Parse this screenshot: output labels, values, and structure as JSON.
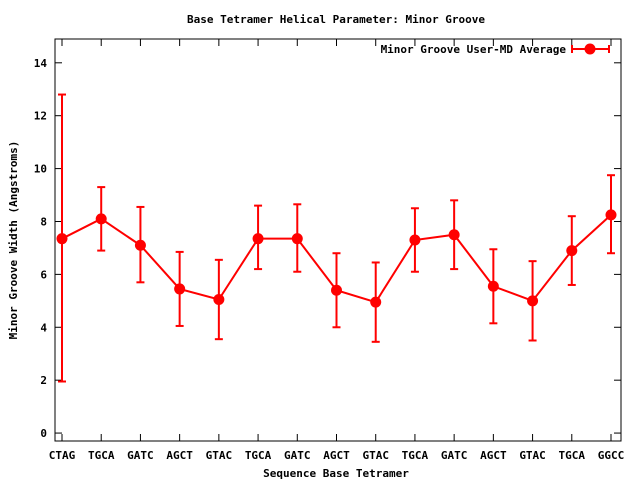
{
  "chart_data": {
    "type": "line",
    "title": "Base Tetramer Helical Parameter: Minor Groove",
    "xlabel": "Sequence Base Tetramer",
    "ylabel": "Minor Groove Width (Angstroms)",
    "ylim": [
      -0.3,
      14.9
    ],
    "yticks": [
      0,
      2,
      4,
      6,
      8,
      10,
      12,
      14
    ],
    "categories": [
      "CTAG",
      "TGCA",
      "GATC",
      "AGCT",
      "GTAC",
      "TGCA",
      "GATC",
      "AGCT",
      "GTAC",
      "TGCA",
      "GATC",
      "AGCT",
      "GTAC",
      "TGCA",
      "GGCC"
    ],
    "series": [
      {
        "name": "Minor Groove User-MD Average",
        "color": "#ff0000",
        "values": [
          7.35,
          8.1,
          7.1,
          5.45,
          5.05,
          7.35,
          7.35,
          5.4,
          4.95,
          7.3,
          7.5,
          5.55,
          5.0,
          6.9,
          8.25
        ],
        "error_low": [
          1.95,
          6.9,
          5.7,
          4.05,
          3.55,
          6.2,
          6.1,
          4.0,
          3.45,
          6.1,
          6.2,
          4.15,
          3.5,
          5.6,
          6.8
        ],
        "error_high": [
          12.8,
          9.3,
          8.55,
          6.85,
          6.55,
          8.6,
          8.65,
          6.8,
          6.45,
          8.5,
          8.8,
          6.95,
          6.5,
          8.2,
          9.75
        ]
      }
    ],
    "legend_position": "top-right",
    "grid": false
  }
}
